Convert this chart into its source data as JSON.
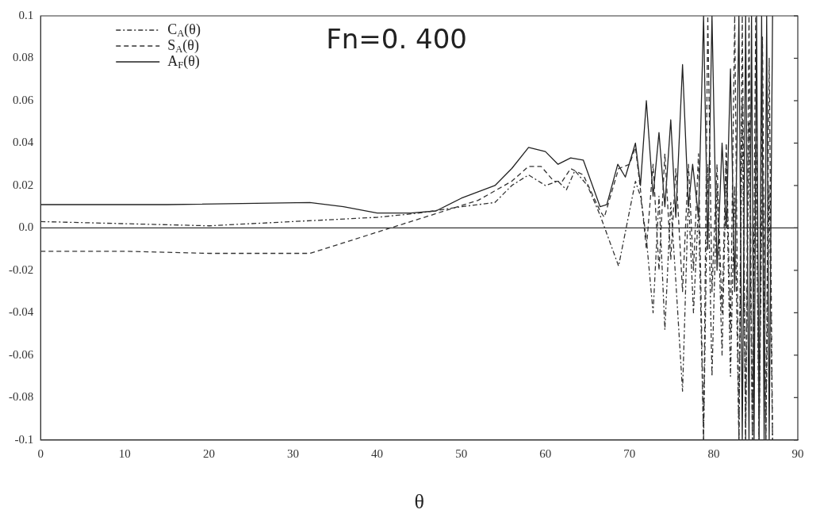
{
  "chart_data": {
    "type": "line",
    "title": "Fn=0. 400",
    "xlabel": "θ",
    "xlim": [
      0,
      90
    ],
    "xticks": [
      0,
      10,
      20,
      30,
      40,
      50,
      60,
      70,
      80,
      90
    ],
    "ylim": [
      -0.1,
      0.1
    ],
    "yticks": [
      {
        "value": -0.1,
        "label": "-0.1"
      },
      -0.08,
      -0.06,
      -0.04,
      -0.02,
      {
        "value": 0,
        "label": "0.0"
      },
      0.02,
      0.04,
      0.06,
      0.08,
      0.1
    ],
    "grid": false,
    "legend": "top left",
    "marker": "none",
    "ref_lines": [
      {
        "axis": "y",
        "value": 0,
        "color": "#333333"
      }
    ],
    "series": [
      {
        "name": "C$_{A}$(θ)",
        "color": "#333333",
        "line_style": "dashdot",
        "x": [
          0,
          10,
          20,
          30,
          40,
          45,
          50,
          54,
          56,
          58,
          60,
          61.5,
          62.5,
          63.5,
          65,
          66.5,
          68.7,
          70,
          70.7,
          71.3,
          72,
          72.8,
          73.5,
          74.2,
          74.9,
          75.5,
          76.3,
          77,
          77.6,
          78.2,
          78.8,
          79.3,
          79.8,
          80.4,
          81,
          81.5,
          82,
          82.5,
          83,
          83.4,
          83.8,
          84.2,
          84.6,
          85,
          85.4,
          85.8,
          86.2,
          86.6,
          87
        ],
        "values": [
          0.003,
          0.002,
          0.001,
          0.003,
          0.005,
          0.007,
          0.01,
          0.012,
          0.02,
          0.025,
          0.02,
          0.022,
          0.018,
          0.027,
          0.02,
          0.006,
          -0.018,
          0.008,
          0.022,
          0.015,
          -0.005,
          -0.04,
          0.015,
          -0.048,
          0.012,
          -0.025,
          -0.077,
          0.015,
          -0.04,
          0.01,
          -0.1,
          0.03,
          -0.07,
          0.02,
          -0.06,
          0.03,
          -0.07,
          0.02,
          -0.1,
          0.06,
          -0.1,
          0.05,
          -0.1,
          0.04,
          -0.1,
          0.03,
          -0.1,
          0.02,
          -0.1
        ]
      },
      {
        "name": "S$_{A}$(θ)",
        "color": "#333333",
        "line_style": "dashed",
        "x": [
          0,
          10,
          20,
          32,
          36,
          40,
          44,
          48,
          52,
          56,
          58,
          59.5,
          61,
          62,
          63,
          64.5,
          66.5,
          67,
          68.7,
          70,
          70.7,
          71.3,
          72,
          72.8,
          73.5,
          74.2,
          74.9,
          75.5,
          76.3,
          77,
          77.6,
          78.2,
          78.8,
          79.3,
          79.8,
          80.4,
          81,
          81.5,
          82,
          82.5,
          83,
          83.4,
          83.8,
          84.2,
          84.6,
          85,
          85.4,
          85.8,
          86.2,
          86.6,
          87
        ],
        "values": [
          -0.011,
          -0.011,
          -0.012,
          -0.012,
          -0.007,
          -0.002,
          0.003,
          0.008,
          0.013,
          0.022,
          0.029,
          0.029,
          0.022,
          0.022,
          0.028,
          0.025,
          0.008,
          0.005,
          0.028,
          0.03,
          0.038,
          0.018,
          -0.01,
          0.03,
          -0.02,
          0.035,
          -0.015,
          0.028,
          -0.03,
          0.03,
          -0.02,
          0.035,
          -0.1,
          0.1,
          -0.03,
          0.03,
          -0.04,
          0.04,
          -0.05,
          0.1,
          -0.1,
          0.1,
          -0.1,
          0.1,
          -0.1,
          0.1,
          -0.1,
          0.09,
          -0.1,
          0.08,
          -0.1
        ]
      },
      {
        "name": "A$_{F}$(θ)",
        "color": "#222222",
        "line_style": "solid",
        "x": [
          0,
          5,
          15,
          32,
          36,
          40,
          44,
          47,
          50,
          54,
          56,
          58,
          60,
          61.5,
          63,
          64.5,
          66.5,
          67.3,
          68.6,
          69.5,
          70.7,
          71.3,
          72,
          72.8,
          73.5,
          74.2,
          74.9,
          75.5,
          76.3,
          77,
          77.5,
          78.2,
          78.8,
          79.3,
          79.8,
          80.4,
          81,
          81.5,
          82,
          82.5,
          83,
          83.4,
          83.8,
          84.2,
          84.5,
          84.8,
          85.1,
          85.4,
          85.7,
          86,
          86.3,
          86.6,
          87
        ],
        "values": [
          0.011,
          0.011,
          0.011,
          0.012,
          0.01,
          0.007,
          0.007,
          0.008,
          0.014,
          0.02,
          0.028,
          0.038,
          0.036,
          0.03,
          0.033,
          0.032,
          0.01,
          0.011,
          0.03,
          0.024,
          0.04,
          0.02,
          0.06,
          0.015,
          0.045,
          0.01,
          0.051,
          0.005,
          0.077,
          0.01,
          0.03,
          0.005,
          0.1,
          -0.01,
          0.1,
          -0.02,
          0.04,
          0,
          0.075,
          -0.03,
          0.1,
          -0.1,
          0.1,
          -0.1,
          0.1,
          -0.1,
          0.1,
          -0.1,
          0.1,
          -0.1,
          0.1,
          -0.1,
          0.1
        ]
      }
    ]
  }
}
